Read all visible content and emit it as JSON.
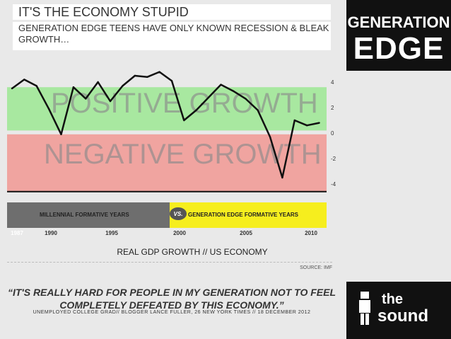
{
  "header": {
    "title": "IT'S THE ECONOMY STUPID",
    "subtitle": "GENERATION EDGE TEENS HAVE ONLY KNOWN RECESSION & BLEAK GROWTH…"
  },
  "brand": {
    "line1": "GENERATION",
    "line2": "EDGE"
  },
  "chart_data": {
    "type": "line",
    "xlabel": "REAL GDP GROWTH // US ECONOMY",
    "ylim": [
      -5,
      5
    ],
    "yticks": [
      4,
      2,
      0,
      -2,
      -4
    ],
    "x_tick_labels": [
      "1987",
      "1990",
      "1995",
      "2000",
      "2005",
      "2010"
    ],
    "zones": {
      "positive": "POSITIVE GROWTH",
      "negative": "NEGATIVE GROWTH"
    },
    "eras": {
      "millennial": "MILLENNIAL FORMATIVE YEARS",
      "vs": "VS.",
      "edge": "GENERATION EDGE FORMATIVE YEARS"
    },
    "series": [
      {
        "x": [
          1987,
          1988,
          1989,
          1990,
          1991,
          1992,
          1993,
          1994,
          1995,
          1996,
          1997,
          1998,
          1999,
          2000,
          2001,
          2002,
          2003,
          2004,
          2005,
          2006,
          2007,
          2008,
          2009,
          2010,
          2011,
          2012
        ],
        "values": [
          3.5,
          4.2,
          3.7,
          1.9,
          -0.1,
          3.6,
          2.7,
          4.0,
          2.5,
          3.7,
          4.5,
          4.4,
          4.8,
          4.1,
          1.0,
          1.8,
          2.8,
          3.8,
          3.3,
          2.7,
          1.8,
          -0.3,
          -3.5,
          1.0,
          0.6,
          0.8
        ]
      }
    ],
    "colors": {
      "positive": "#a8e8a0",
      "negative": "#f0a4a0",
      "line": "#111111",
      "era_grey": "#6e6e6e",
      "era_yellow": "#f6ee1e"
    }
  },
  "source": "SOURCE: IMF",
  "quote": "“IT'S REALLY HARD FOR PEOPLE IN MY GENERATION NOT TO FEEL COMPLETELY DEFEATED BY THIS ECONOMY.”",
  "attribution": "UNEMPLOYED COLLEGE GRAD// BLOGGER LANCE FULLER, 26 NEW YORK TIMES // 18 DECEMBER 2012",
  "logo": {
    "line1": "the",
    "line2": "sound"
  }
}
